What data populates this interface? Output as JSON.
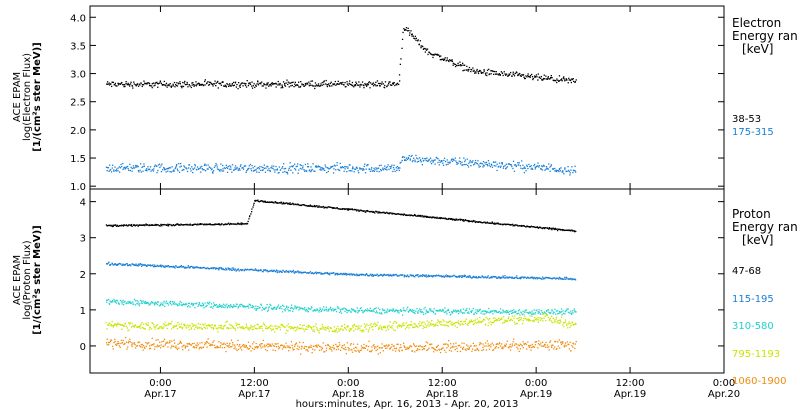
{
  "x_axis": {
    "label": "hours:minutes, Apr. 16, 2013 - Apr. 20, 2013",
    "ticks": [
      {
        "hours": 6,
        "time": "0:00",
        "date": "Apr.17"
      },
      {
        "hours": 18,
        "time": "12:00",
        "date": "Apr.17"
      },
      {
        "hours": 30,
        "time": "0:00",
        "date": "Apr.18"
      },
      {
        "hours": 42,
        "time": "12:00",
        "date": "Apr.18"
      },
      {
        "hours": 54,
        "time": "0:00",
        "date": "Apr.19"
      },
      {
        "hours": 66,
        "time": "12:00",
        "date": "Apr.19"
      },
      {
        "hours": 78,
        "time": "0:00",
        "date": "Apr.20"
      }
    ],
    "range_hours": [
      -3,
      78
    ]
  },
  "chart_data": [
    {
      "type": "scatter",
      "name": "electron",
      "ylabel_lines": [
        "ACE EPAM",
        "log(Electron Flux)",
        "[1/(cm²s ster MeV)]"
      ],
      "legend_title": [
        "Electron",
        "Energy ran",
        "[keV]"
      ],
      "ylim": [
        0.95,
        4.2
      ],
      "yticks": [
        1.0,
        1.5,
        2.0,
        2.5,
        3.0,
        3.5,
        4.0
      ],
      "ytick_labels": [
        "1.0",
        "1.5",
        "2.0",
        "2.5",
        "3.0",
        "3.5",
        "4.0"
      ],
      "x_range_hours": [
        -1,
        59
      ],
      "event_hours": 36.5,
      "series": [
        {
          "name": "38-53",
          "color": "#000000",
          "base": 2.82,
          "noise": 0.05,
          "event": [
            3.85,
            2.9,
            11
          ],
          "points": [
            [
              -1,
              2.82
            ],
            [
              36.4,
              2.82
            ],
            [
              37,
              3.85
            ],
            [
              40,
              3.4
            ],
            [
              46,
              3.05
            ],
            [
              59,
              2.87
            ]
          ]
        },
        {
          "name": "175-315",
          "color": "#1a7fd6",
          "base": 1.33,
          "noise": 0.07,
          "event": [
            1.5,
            1.33,
            6
          ],
          "points": [
            [
              -1,
              1.33
            ],
            [
              36.4,
              1.33
            ],
            [
              37,
              1.5
            ],
            [
              59,
              1.3
            ]
          ]
        }
      ]
    },
    {
      "type": "scatter",
      "name": "proton",
      "ylabel_lines": [
        "ACE EPAM",
        "log(Proton Flux)",
        "[1/(cm²s ster MeV)]"
      ],
      "legend_title": [
        "Proton",
        "Energy ran",
        "[keV]"
      ],
      "ylim": [
        -0.75,
        4.35
      ],
      "yticks": [
        0,
        1,
        2,
        3,
        4
      ],
      "ytick_labels": [
        "0",
        "1",
        "2",
        "3",
        "4"
      ],
      "x_range_hours": [
        -1,
        59
      ],
      "series": [
        {
          "name": "47-68",
          "color": "#000000",
          "start": 3.35,
          "end": 3.2,
          "noise": 0.02,
          "points": [
            [
              -1,
              3.35
            ],
            [
              17,
              3.4
            ],
            [
              18,
              4.05
            ],
            [
              59,
              3.2
            ]
          ]
        },
        {
          "name": "115-195",
          "color": "#1a7fd6",
          "start": 2.3,
          "end": 1.9,
          "noise": 0.03,
          "points": [
            [
              -1,
              2.3
            ],
            [
              30,
              2.0
            ],
            [
              59,
              1.88
            ]
          ]
        },
        {
          "name": "310-580",
          "color": "#22d1cc",
          "start": 1.25,
          "end": 0.95,
          "noise": 0.07,
          "points": [
            [
              -1,
              1.25
            ],
            [
              30,
              1.0
            ],
            [
              59,
              0.95
            ]
          ]
        },
        {
          "name": "795-1193",
          "color": "#c8e400",
          "start": 0.6,
          "end": 0.6,
          "noise": 0.1,
          "points": [
            [
              -1,
              0.6
            ],
            [
              30,
              0.5
            ],
            [
              55,
              0.8
            ],
            [
              59,
              0.6
            ]
          ]
        },
        {
          "name": "1060-1900",
          "color": "#f08c10",
          "start": 0.1,
          "end": 0.05,
          "noise": 0.12,
          "points": [
            [
              -1,
              0.1
            ],
            [
              30,
              -0.05
            ],
            [
              59,
              0.05
            ]
          ]
        }
      ]
    }
  ]
}
